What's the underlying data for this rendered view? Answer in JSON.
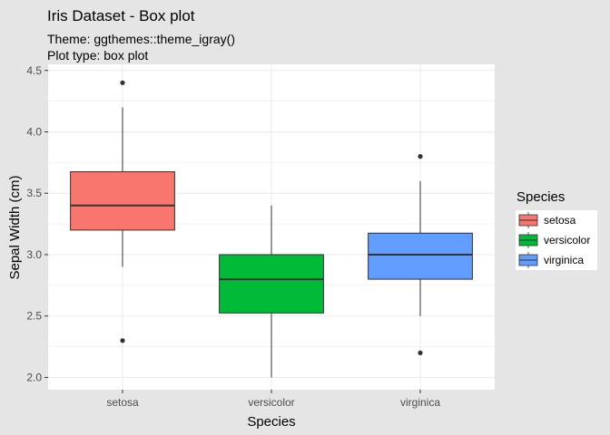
{
  "chart_data": {
    "type": "box",
    "title": "Iris Dataset - Box plot",
    "subtitle_lines": [
      "Theme: ggthemes::theme_igray()",
      "Plot type: box plot"
    ],
    "xlabel": "Species",
    "ylabel": "Sepal Width (cm)",
    "ylim": [
      1.9,
      4.55
    ],
    "yticks": [
      2.0,
      2.5,
      3.0,
      3.5,
      4.0,
      4.5
    ],
    "ytick_labels": [
      "2.0",
      "2.5",
      "3.0",
      "3.5",
      "4.0",
      "4.5"
    ],
    "categories": [
      "setosa",
      "versicolor",
      "virginica"
    ],
    "boxes": [
      {
        "category": "setosa",
        "q1": 3.2,
        "median": 3.4,
        "q3": 3.675,
        "whisker_low": 2.9,
        "whisker_high": 4.2,
        "outliers": [
          4.4,
          2.3
        ],
        "color": "#f8766d"
      },
      {
        "category": "versicolor",
        "q1": 2.525,
        "median": 2.8,
        "q3": 3.0,
        "whisker_low": 2.0,
        "whisker_high": 3.4,
        "outliers": [],
        "color": "#00ba38"
      },
      {
        "category": "virginica",
        "q1": 2.8,
        "median": 3.0,
        "q3": 3.175,
        "whisker_low": 2.5,
        "whisker_high": 3.6,
        "outliers": [
          3.8,
          2.2
        ],
        "color": "#619cff"
      }
    ],
    "legend": {
      "title": "Species",
      "position": "right",
      "items": [
        {
          "label": "setosa",
          "color": "#f8766d"
        },
        {
          "label": "versicolor",
          "color": "#00ba38"
        },
        {
          "label": "virginica",
          "color": "#619cff"
        }
      ]
    },
    "grid": true,
    "colors": {
      "background": "#e5e5e5",
      "panel": "#ffffff",
      "grid": "#ebebeb",
      "outline": "#333333"
    }
  }
}
